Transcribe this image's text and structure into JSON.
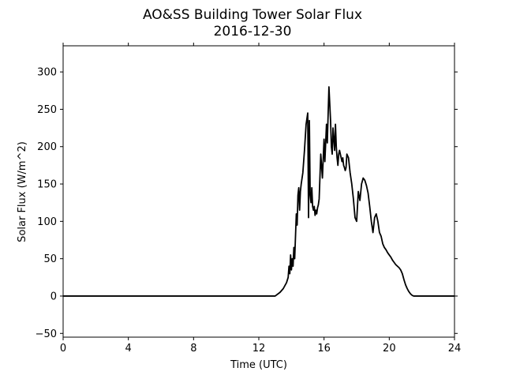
{
  "chart_data": {
    "type": "line",
    "title": "AO&SS Building Tower Solar Flux",
    "subtitle": "2016-12-30",
    "xlabel": "Time (UTC)",
    "ylabel": "Solar Flux (W/m^2)",
    "xlim": [
      0,
      24
    ],
    "ylim": [
      -55,
      335
    ],
    "xticks": [
      0,
      4,
      8,
      12,
      16,
      20,
      24
    ],
    "yticks": [
      -50,
      0,
      50,
      100,
      150,
      200,
      250,
      300
    ],
    "grid": false,
    "line_color": "#000000",
    "series": [
      {
        "x": [
          0,
          13.0,
          13.3,
          13.5,
          13.7,
          13.8,
          13.85,
          13.9,
          13.95,
          14.0,
          14.05,
          14.1,
          14.15,
          14.2,
          14.3,
          14.35,
          14.4,
          14.45,
          14.5,
          14.55,
          14.6,
          14.7,
          14.75,
          14.8,
          14.9,
          15.0,
          15.05,
          15.1,
          15.15,
          15.2,
          15.25,
          15.3,
          15.35,
          15.4,
          15.45,
          15.5,
          15.55,
          15.6,
          15.65,
          15.7,
          15.8,
          15.9,
          16.0,
          16.05,
          16.1,
          16.15,
          16.2,
          16.3,
          16.4,
          16.45,
          16.5,
          16.55,
          16.6,
          16.65,
          16.7,
          16.75,
          16.8,
          16.85,
          16.9,
          16.95,
          17.0,
          17.05,
          17.1,
          17.15,
          17.2,
          17.25,
          17.3,
          17.35,
          17.4,
          17.5,
          17.6,
          17.7,
          17.8,
          17.9,
          18.0,
          18.1,
          18.2,
          18.3,
          18.4,
          18.5,
          18.6,
          18.7,
          18.8,
          18.9,
          19.0,
          19.1,
          19.2,
          19.3,
          19.4,
          19.5,
          19.6,
          19.7,
          19.8,
          19.9,
          20.0,
          20.1,
          20.2,
          20.3,
          20.4,
          20.5,
          20.6,
          20.7,
          20.8,
          20.9,
          21.0,
          21.1,
          21.2,
          21.3,
          21.4,
          21.5,
          21.6,
          21.7,
          21.8,
          21.9,
          22.0,
          22.1,
          22.2,
          22.3,
          22.4,
          22.5,
          22.6,
          22.7,
          23.0,
          24.0
        ],
        "y": [
          0,
          0,
          5,
          10,
          18,
          25,
          40,
          30,
          55,
          35,
          50,
          40,
          65,
          50,
          110,
          95,
          135,
          145,
          115,
          140,
          150,
          165,
          180,
          195,
          230,
          245,
          105,
          235,
          135,
          125,
          145,
          120,
          115,
          120,
          108,
          115,
          110,
          118,
          122,
          130,
          190,
          158,
          210,
          180,
          205,
          230,
          205,
          280,
          235,
          200,
          190,
          225,
          210,
          195,
          230,
          200,
          185,
          175,
          190,
          195,
          190,
          185,
          180,
          185,
          175,
          172,
          168,
          172,
          190,
          185,
          165,
          150,
          130,
          105,
          100,
          140,
          128,
          150,
          158,
          155,
          148,
          138,
          120,
          100,
          85,
          105,
          110,
          100,
          85,
          80,
          70,
          65,
          62,
          58,
          55,
          52,
          48,
          45,
          42,
          40,
          38,
          35,
          30,
          22,
          15,
          10,
          6,
          3,
          1,
          0,
          0,
          0,
          0,
          0,
          0,
          0,
          0,
          0,
          0,
          0,
          0,
          0,
          0,
          0
        ]
      }
    ]
  }
}
